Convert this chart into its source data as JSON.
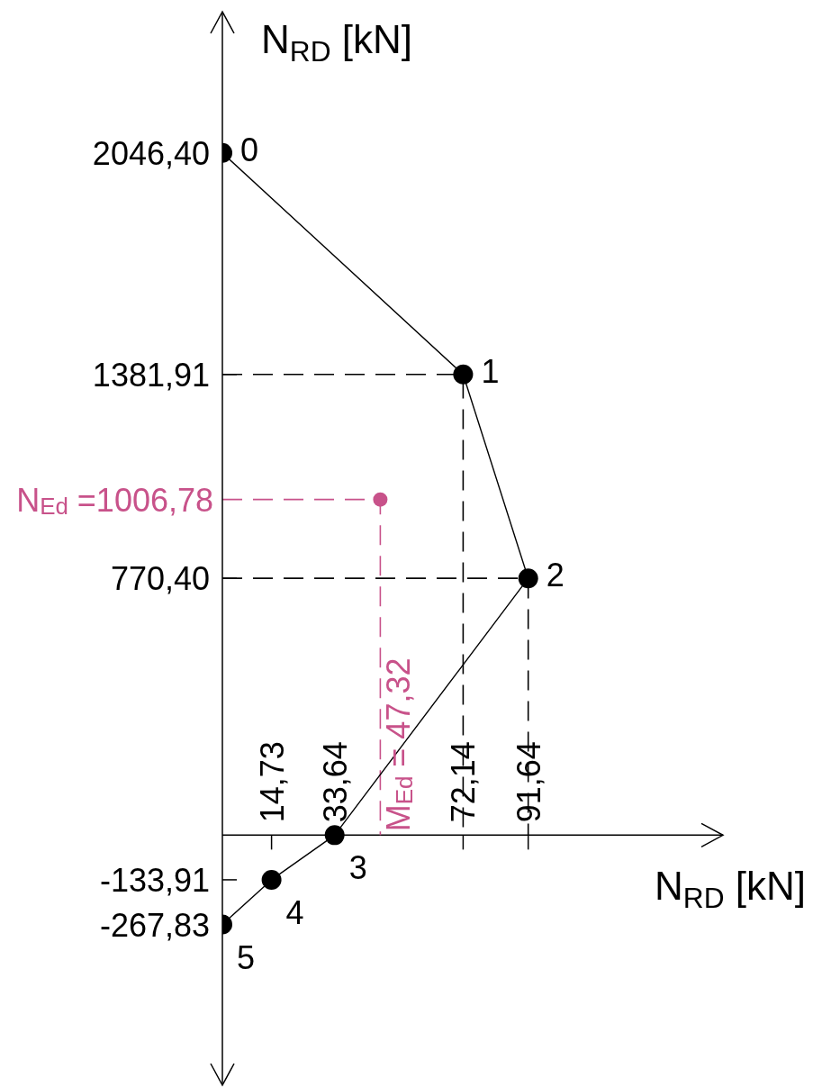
{
  "chart_data": {
    "type": "line",
    "xlabel": "N$_{RD}$ [kN]",
    "ylabel": "N$_{RD}$ [kN]",
    "xlim": [
      0,
      150
    ],
    "ylim": [
      -750,
      2470
    ],
    "xticks": [
      {
        "value": 14.73,
        "label": "14,73"
      },
      {
        "value": 33.64,
        "label": "33,64"
      },
      {
        "value": 72.14,
        "label": "72,14"
      },
      {
        "value": 91.64,
        "label": "91,64"
      }
    ],
    "yticks": [
      {
        "value": 2046.4,
        "label": "2046,40"
      },
      {
        "value": 1381.91,
        "label": "1381,91"
      },
      {
        "value": 770.4,
        "label": "770,40"
      },
      {
        "value": -133.91,
        "label": "-133,91"
      },
      {
        "value": -267.83,
        "label": "-267,83"
      }
    ],
    "series": [
      {
        "x": [
          0,
          72.14,
          91.64,
          33.64,
          14.73,
          0
        ],
        "values": [
          2046.4,
          1381.91,
          770.4,
          0,
          -133.91,
          -267.83
        ],
        "color": "#000000",
        "marker": "circle",
        "line_style": "solid"
      },
      {
        "type": "line",
        "x": [
          0,
          72.14,
          72.14
        ],
        "values": [
          1381.91,
          1381.91,
          0
        ],
        "color": "#000000",
        "marker": "none",
        "line_style": "dashed"
      },
      {
        "type": "line",
        "x": [
          0,
          91.64,
          91.64
        ],
        "values": [
          770.4,
          770.4,
          0
        ],
        "color": "#000000",
        "marker": "none",
        "line_style": "dashed"
      },
      {
        "type": "line",
        "x": [
          0,
          47.32,
          47.32
        ],
        "values": [
          1006.78,
          1006.78,
          0
        ],
        "color": "#c8528a",
        "marker": "none",
        "line_style": "dashed"
      },
      {
        "type": "scatter",
        "x": [
          47.32
        ],
        "values": [
          1006.78
        ],
        "color": "#c8528a",
        "marker": "circle"
      }
    ],
    "annotations": [
      {
        "text": "0",
        "x": 0,
        "y": 2046.4
      },
      {
        "text": "1",
        "x": 72.14,
        "y": 1381.91
      },
      {
        "text": "2",
        "x": 91.64,
        "y": 770.4
      },
      {
        "text": "3",
        "x": 33.64,
        "y": 0
      },
      {
        "text": "4",
        "x": 14.73,
        "y": -133.91
      },
      {
        "text": "5",
        "x": 0,
        "y": -267.83
      },
      {
        "text": "N$_{Ed}$ =1006,78",
        "x": 0,
        "y": 1006.78
      },
      {
        "text": "M$_{Ed}$ = 47,32",
        "x": 47.32,
        "y": 0
      }
    ]
  }
}
